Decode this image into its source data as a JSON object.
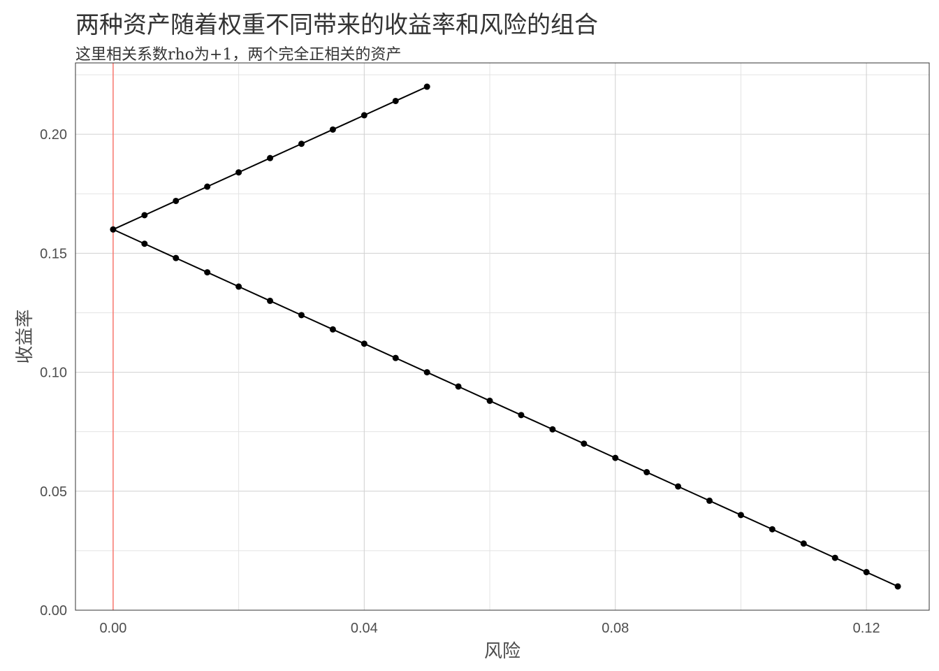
{
  "title": "两种资产随着权重不同带来的收益率和风险的组合",
  "subtitle": "这里相关系数rho为+1，两个完全正相关的资产",
  "chart_data": {
    "type": "scatter",
    "title": "两种资产随着权重不同带来的收益率和风险的组合",
    "subtitle": "这里相关系数rho为+1，两个完全正相关的资产",
    "xlabel": "风险",
    "ylabel": "收益率",
    "xlim": [
      -0.006,
      0.13
    ],
    "ylim": [
      0,
      0.23
    ],
    "x_ticks": [
      0.0,
      0.04,
      0.08,
      0.12
    ],
    "x_tick_labels": [
      "0.00",
      "0.04",
      "0.08",
      "0.12"
    ],
    "y_ticks": [
      0.0,
      0.05,
      0.1,
      0.15,
      0.2
    ],
    "y_tick_labels": [
      "0.00",
      "0.05",
      "0.10",
      "0.15",
      "0.20"
    ],
    "grid": true,
    "vline": {
      "x": 0,
      "color": "#f8766d"
    },
    "points_color": "#000000",
    "series": [
      {
        "x": [
          0.05,
          0.045,
          0.04,
          0.035,
          0.03,
          0.025,
          0.02,
          0.015,
          0.01,
          0.005,
          0.0,
          0.005,
          0.01,
          0.015,
          0.02,
          0.025,
          0.03,
          0.035,
          0.04,
          0.045,
          0.05,
          0.055,
          0.06,
          0.065,
          0.07,
          0.075,
          0.08,
          0.085,
          0.09,
          0.095,
          0.1,
          0.105,
          0.11,
          0.115,
          0.12,
          0.125
        ],
        "y": [
          0.22,
          0.214,
          0.208,
          0.202,
          0.196,
          0.19,
          0.184,
          0.178,
          0.172,
          0.166,
          0.16,
          0.154,
          0.148,
          0.142,
          0.136,
          0.13,
          0.124,
          0.118,
          0.112,
          0.106,
          0.1,
          0.094,
          0.088,
          0.082,
          0.076,
          0.07,
          0.064,
          0.058,
          0.052,
          0.046,
          0.04,
          0.034,
          0.028,
          0.022,
          0.016,
          0.01
        ]
      }
    ]
  }
}
